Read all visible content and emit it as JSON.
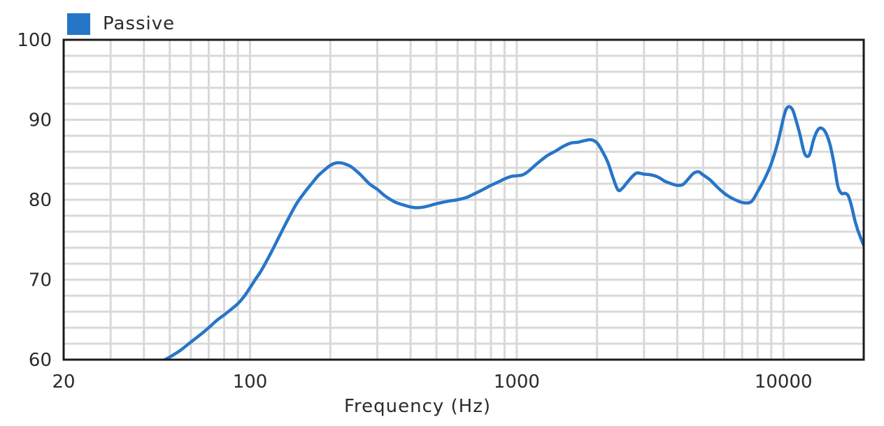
{
  "chart_data": {
    "type": "line",
    "title": "",
    "xlabel": "Frequency (Hz)",
    "ylabel": "",
    "x_scale": "log",
    "xlim": [
      20,
      20000
    ],
    "ylim": [
      60,
      100
    ],
    "x_tick_labels": [
      "20",
      "100",
      "1000",
      "10000"
    ],
    "x_tick_values": [
      20,
      100,
      1000,
      10000
    ],
    "y_tick_labels": [
      "100",
      "90",
      "80",
      "70",
      "60"
    ],
    "y_tick_values": [
      100,
      90,
      80,
      70,
      60
    ],
    "grid": true,
    "legend_position": "top-left",
    "series": [
      {
        "name": "Passive",
        "color": "#2775c9",
        "x": [
          48,
          51,
          55,
          60,
          65,
          70,
          75,
          80,
          85,
          90,
          95,
          100,
          105,
          110,
          120,
          130,
          140,
          150,
          160,
          170,
          180,
          190,
          200,
          210,
          220,
          230,
          240,
          260,
          280,
          300,
          320,
          350,
          380,
          400,
          420,
          450,
          500,
          550,
          600,
          650,
          700,
          750,
          800,
          850,
          900,
          950,
          1000,
          1050,
          1100,
          1200,
          1300,
          1400,
          1500,
          1600,
          1700,
          1800,
          1900,
          2000,
          2100,
          2200,
          2300,
          2400,
          2500,
          2600,
          2800,
          3000,
          3200,
          3400,
          3600,
          3800,
          4000,
          4200,
          4400,
          4600,
          4800,
          5000,
          5300,
          5600,
          6000,
          6400,
          6800,
          7200,
          7600,
          8000,
          8500,
          9000,
          9500,
          10000,
          10200,
          10400,
          10600,
          10800,
          11000,
          11500,
          12000,
          12500,
          13000,
          13500,
          14000,
          14500,
          15000,
          15500,
          16000,
          16500,
          17000,
          17500,
          18000,
          18500,
          19000,
          19500,
          20000
        ],
        "y": [
          60,
          60.5,
          61.2,
          62.2,
          63.1,
          64.0,
          64.9,
          65.6,
          66.3,
          67.0,
          67.9,
          69.0,
          70.1,
          71.1,
          73.4,
          75.7,
          77.8,
          79.6,
          80.9,
          82.0,
          83.0,
          83.7,
          84.3,
          84.6,
          84.6,
          84.4,
          84.1,
          83.1,
          82.0,
          81.3,
          80.5,
          79.7,
          79.3,
          79.1,
          79.0,
          79.1,
          79.5,
          79.8,
          80.0,
          80.3,
          80.8,
          81.3,
          81.8,
          82.2,
          82.6,
          82.9,
          83.0,
          83.1,
          83.5,
          84.6,
          85.5,
          86.1,
          86.7,
          87.1,
          87.2,
          87.4,
          87.5,
          87.1,
          86.0,
          84.6,
          82.7,
          81.2,
          81.5,
          82.2,
          83.3,
          83.2,
          83.1,
          82.8,
          82.3,
          82.0,
          81.8,
          81.9,
          82.6,
          83.3,
          83.5,
          83.1,
          82.5,
          81.7,
          80.8,
          80.2,
          79.8,
          79.6,
          79.8,
          81.0,
          82.6,
          84.5,
          87.0,
          90.2,
          91.2,
          91.6,
          91.6,
          91.3,
          90.6,
          88.3,
          85.8,
          85.6,
          87.6,
          88.8,
          88.9,
          88.2,
          86.7,
          84.4,
          81.7,
          80.8,
          80.8,
          80.5,
          79.2,
          77.5,
          76.2,
          75.2,
          74.3
        ]
      }
    ]
  }
}
